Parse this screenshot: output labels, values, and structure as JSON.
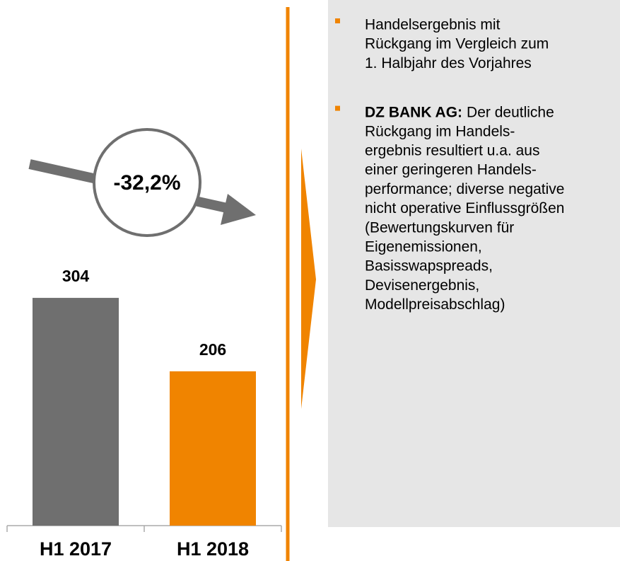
{
  "chart_data": {
    "type": "bar",
    "categories": [
      "H1 2017",
      "H1 2018"
    ],
    "values": [
      304,
      206
    ],
    "colors": [
      "#6f6f6f",
      "#f08400"
    ],
    "annotation": "-32,2%"
  },
  "panel": {
    "bullets": [
      {
        "lines": [
          "Handelsergebnis mit",
          "Rückgang im Vergleich zum",
          "1. Halbjahr des Vorjahres"
        ]
      },
      {
        "lead": "DZ BANK AG:",
        "lines": [
          "Der deutliche",
          "Rückgang im Handels-",
          "ergebnis resultiert u.a. aus",
          "einer geringeren Handels-",
          "performance; diverse negative",
          "nicht operative Einflussgrößen",
          "(Bewertungskurven für",
          "Eigenemissionen,",
          "Basisswapspreads,",
          "Devisenergebnis,",
          "Modellpreisabschlag)"
        ]
      }
    ]
  }
}
